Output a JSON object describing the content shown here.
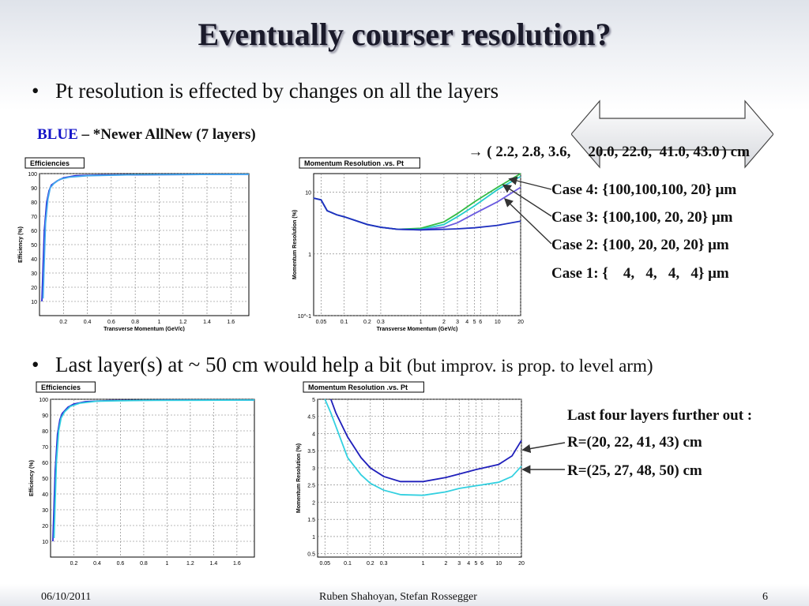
{
  "slide": {
    "title": "Eventually courser resolution?",
    "bullet1": "Pt resolution is effected by changes on all the layers",
    "bullet2_main": "Last layer(s) at ~ 50 cm would help a bit",
    "bullet2_paren": "(but improv. is prop. to level arm)",
    "blue_word": "BLUE",
    "legend_rest": "– *Newer AllNew (7 layers)",
    "radii_prefix": "→ ( 2.2, 2.8, 3.6,",
    "radii_boxed": "20.0, 22.0,  41.0, 43.0",
    "radii_suffix": ") cm",
    "cases": [
      "Case 4: {100,100,100, 20} μm",
      "Case 3: {100,100, 20, 20} μm",
      "Case 2: {100, 20, 20, 20} μm",
      "Case 1: {    4,   4,   4,   4} μm"
    ],
    "further": {
      "heading": "Last four layers further out :",
      "r1": "R=(20, 22, 41, 43) cm",
      "r2": "R=(25, 27, 48, 50) cm"
    },
    "footer": {
      "date": "06/10/2011",
      "authors": "Ruben Shahoyan, Stefan Rossegger",
      "page": "6"
    }
  },
  "chart_data": [
    {
      "type": "line",
      "title": "Efficiencies",
      "xlabel": "Transverse Momentum (GeV/c)",
      "ylabel": "Efficiency (%)",
      "xlim": [
        0,
        1.75
      ],
      "ylim": [
        0,
        100
      ],
      "xticks": [
        "0.2",
        "0.4",
        "0.6",
        "0.8",
        "1",
        "1.2",
        "1.4",
        "1.6"
      ],
      "yticks": [
        "10",
        "20",
        "30",
        "40",
        "50",
        "60",
        "70",
        "80",
        "90",
        "100"
      ],
      "grid": true,
      "series": [
        {
          "color": "#2a2ad6",
          "x": [
            0.02,
            0.04,
            0.06,
            0.08,
            0.1,
            0.15,
            0.2,
            0.3,
            0.5,
            1.0,
            1.75
          ],
          "y": [
            10,
            60,
            80,
            88,
            92,
            95,
            97,
            98.5,
            99,
            99.3,
            99.5
          ]
        },
        {
          "color": "#44aaee",
          "x": [
            0.03,
            0.05,
            0.07,
            0.09,
            0.12,
            0.17,
            0.25,
            0.4,
            0.8,
            1.75
          ],
          "y": [
            12,
            65,
            82,
            90,
            93,
            96,
            97.5,
            98.5,
            99.2,
            99.5
          ]
        }
      ]
    },
    {
      "type": "line",
      "title": "Momentum Resolution .vs. Pt",
      "xlabel": "Transverse Momentum (GeV/c)",
      "ylabel": "Momentum Resolution (%)",
      "xscale": "log",
      "yscale": "log",
      "xlim": [
        0.04,
        20
      ],
      "ylim": [
        0.1,
        20
      ],
      "xticks": [
        "0.05",
        "0.1",
        "0.2",
        "0.3",
        "1",
        "2",
        "3",
        "4",
        "5",
        "6",
        "10",
        "20"
      ],
      "yticks": [
        "10^-1",
        "1",
        "10"
      ],
      "grid": true,
      "series": [
        {
          "name": "Case 4",
          "color": "#33bb44",
          "x": [
            0.04,
            0.05,
            0.06,
            0.08,
            0.1,
            0.2,
            0.3,
            0.5,
            1,
            2,
            3,
            5,
            10,
            20
          ],
          "y": [
            8,
            7.5,
            5,
            4.3,
            4,
            3,
            2.7,
            2.5,
            2.6,
            3.3,
            4.5,
            7,
            12,
            20
          ]
        },
        {
          "name": "Case 3",
          "color": "#22cccc",
          "x": [
            0.04,
            0.05,
            0.06,
            0.08,
            0.1,
            0.2,
            0.3,
            0.5,
            1,
            2,
            3,
            5,
            10,
            20
          ],
          "y": [
            8,
            7.5,
            5,
            4.3,
            4,
            3,
            2.7,
            2.5,
            2.5,
            3,
            4,
            6,
            11,
            18
          ]
        },
        {
          "name": "Case 2",
          "color": "#6a5ae0",
          "x": [
            0.04,
            0.05,
            0.06,
            0.08,
            0.1,
            0.2,
            0.3,
            0.5,
            1,
            2,
            3,
            5,
            10,
            20
          ],
          "y": [
            8,
            7.5,
            5,
            4.3,
            4,
            3,
            2.7,
            2.5,
            2.45,
            2.7,
            3.2,
            4.5,
            7,
            12
          ]
        },
        {
          "name": "Case 1",
          "color": "#1f2fbf",
          "x": [
            0.04,
            0.05,
            0.06,
            0.08,
            0.1,
            0.2,
            0.3,
            0.5,
            1,
            2,
            3,
            5,
            10,
            20
          ],
          "y": [
            8,
            7.5,
            5,
            4.3,
            4,
            3,
            2.7,
            2.5,
            2.45,
            2.5,
            2.55,
            2.65,
            2.9,
            3.4
          ]
        }
      ]
    },
    {
      "type": "line",
      "title": "Efficiencies",
      "xlabel": "",
      "ylabel": "Efficiency (%)",
      "xlim": [
        0,
        1.75
      ],
      "ylim": [
        0,
        100
      ],
      "xticks": [
        "0.2",
        "0.4",
        "0.6",
        "0.8",
        "1",
        "1.2",
        "1.4",
        "1.6"
      ],
      "yticks": [
        "10",
        "20",
        "30",
        "40",
        "50",
        "60",
        "70",
        "80",
        "90",
        "100"
      ],
      "grid": true,
      "series": [
        {
          "color": "#2a2ad6",
          "x": [
            0.02,
            0.04,
            0.06,
            0.08,
            0.1,
            0.15,
            0.2,
            0.3,
            0.5,
            1.0,
            1.75
          ],
          "y": [
            10,
            55,
            78,
            87,
            91,
            95,
            97,
            98.5,
            99.2,
            99.5,
            99.5
          ]
        },
        {
          "color": "#33d0e0",
          "x": [
            0.03,
            0.05,
            0.07,
            0.09,
            0.12,
            0.17,
            0.25,
            0.4,
            0.8,
            1.75
          ],
          "y": [
            12,
            60,
            80,
            88,
            92,
            95.5,
            97.5,
            98.8,
            99.3,
            99.5
          ]
        }
      ]
    },
    {
      "type": "line",
      "title": "Momentum Resolution .vs. Pt",
      "xlabel": "",
      "ylabel": "Momentum Resolution (%)",
      "xscale": "log",
      "xlim": [
        0.04,
        20
      ],
      "ylim": [
        0.4,
        5
      ],
      "xticks": [
        "0.05",
        "0.1",
        "0.2",
        "0.3",
        "1",
        "2",
        "3",
        "4",
        "5",
        "6",
        "10",
        "20"
      ],
      "yticks": [
        "0.5",
        "1",
        "1.5",
        "2",
        "2.5",
        "3",
        "3.5",
        "4",
        "4.5",
        "5"
      ],
      "grid": true,
      "series": [
        {
          "name": "R=(20, 22, 41, 43) cm",
          "color": "#1f1fbb",
          "x": [
            0.06,
            0.07,
            0.1,
            0.15,
            0.2,
            0.3,
            0.5,
            1,
            2,
            3,
            5,
            10,
            15,
            20
          ],
          "y": [
            5,
            4.6,
            3.9,
            3.3,
            3.0,
            2.75,
            2.6,
            2.6,
            2.72,
            2.82,
            2.95,
            3.1,
            3.35,
            3.8
          ]
        },
        {
          "name": "R=(25, 27, 48, 50) cm",
          "color": "#33d0e0",
          "x": [
            0.05,
            0.06,
            0.1,
            0.15,
            0.2,
            0.3,
            0.5,
            1,
            2,
            3,
            5,
            10,
            15,
            20
          ],
          "y": [
            5,
            4.6,
            3.3,
            2.8,
            2.55,
            2.35,
            2.22,
            2.2,
            2.3,
            2.4,
            2.48,
            2.58,
            2.75,
            3.05
          ]
        }
      ]
    }
  ]
}
